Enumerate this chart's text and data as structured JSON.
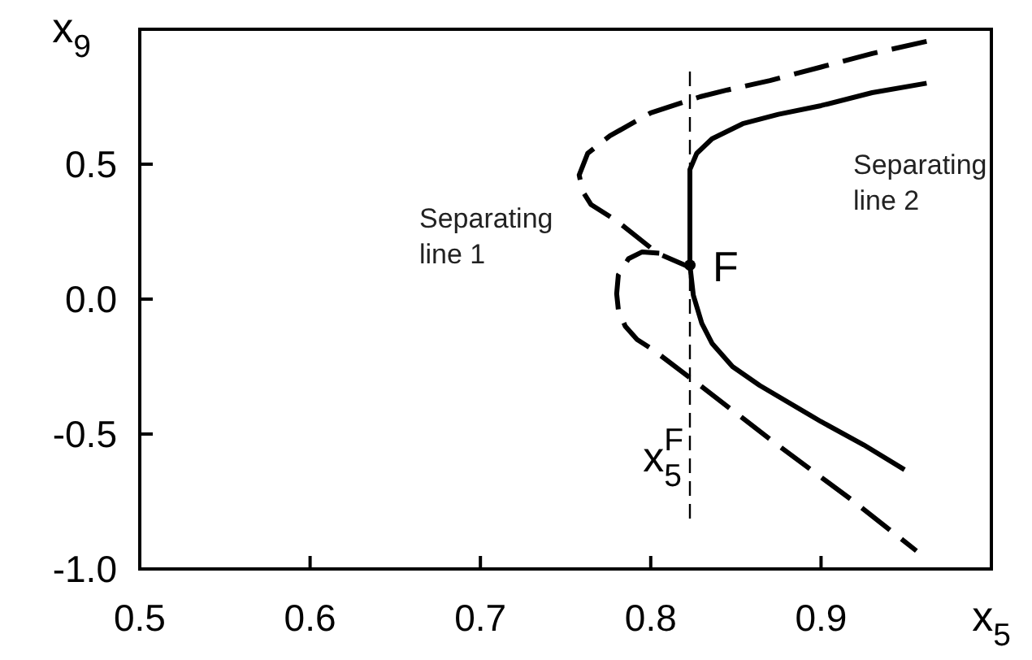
{
  "chart_data": {
    "type": "line",
    "xlabel": "x$_{5}$",
    "ylabel": "x$_{9}$",
    "xlim": [
      0.5,
      1.0
    ],
    "ylim": [
      -1.0,
      1.0
    ],
    "xticks": [
      0.5,
      0.6,
      0.7,
      0.8,
      0.9
    ],
    "yticks": [
      {
        "value": -1.0,
        "label": "-1.0"
      },
      {
        "value": -0.5,
        "label": "-0.5"
      },
      {
        "value": 0,
        "label": "0.0"
      },
      {
        "value": 0.5,
        "label": "0.5"
      }
    ],
    "grid": false,
    "series": [
      {
        "color": "#000000",
        "line_style": "dashed",
        "marker": "none",
        "x": [
          0.962,
          0.93,
          0.9,
          0.87,
          0.845,
          0.829,
          0.8,
          0.776,
          0.763,
          0.758,
          0.76,
          0.765,
          0.78,
          0.804,
          0.824
        ],
        "values": [
          0.955,
          0.91,
          0.86,
          0.81,
          0.775,
          0.75,
          0.69,
          0.605,
          0.54,
          0.46,
          0.4,
          0.35,
          0.29,
          0.17,
          0.115
        ]
      },
      {
        "color": "#000000",
        "line_style": "dashed",
        "marker": "none",
        "x": [
          0.805,
          0.795,
          0.787,
          0.781,
          0.78,
          0.781,
          0.785,
          0.792,
          0.801,
          0.829,
          0.875,
          0.918,
          0.956
        ],
        "values": [
          0.17,
          0.175,
          0.15,
          0.09,
          0.02,
          -0.04,
          -0.1,
          -0.15,
          -0.186,
          -0.32,
          -0.543,
          -0.744,
          -0.933
        ]
      },
      {
        "color": "#000000",
        "line_style": "solid",
        "marker": "none",
        "x": [
          0.962,
          0.93,
          0.9,
          0.875,
          0.854,
          0.836,
          0.827,
          0.823,
          0.823,
          0.825,
          0.83,
          0.836,
          0.848,
          0.864,
          0.9,
          0.925,
          0.949
        ],
        "values": [
          0.8,
          0.765,
          0.717,
          0.685,
          0.65,
          0.594,
          0.54,
          0.48,
          0.126,
          0.015,
          -0.09,
          -0.164,
          -0.25,
          -0.32,
          -0.454,
          -0.54,
          -0.632
        ]
      },
      {
        "type": "scatter",
        "color": "#000000",
        "marker": "circle",
        "x": [
          0.823
        ],
        "values": [
          0.126
        ]
      }
    ],
    "ref_lines": [
      {
        "axis": "x",
        "value": 0.823,
        "label": "x$_{5}$$^{F}$",
        "color": "#000000",
        "line_style": "dashed"
      }
    ],
    "annotations": [
      "Separating line 1",
      "Separating line 2",
      {
        "text": "F",
        "x": 0.823,
        "y": 0.126
      }
    ]
  }
}
